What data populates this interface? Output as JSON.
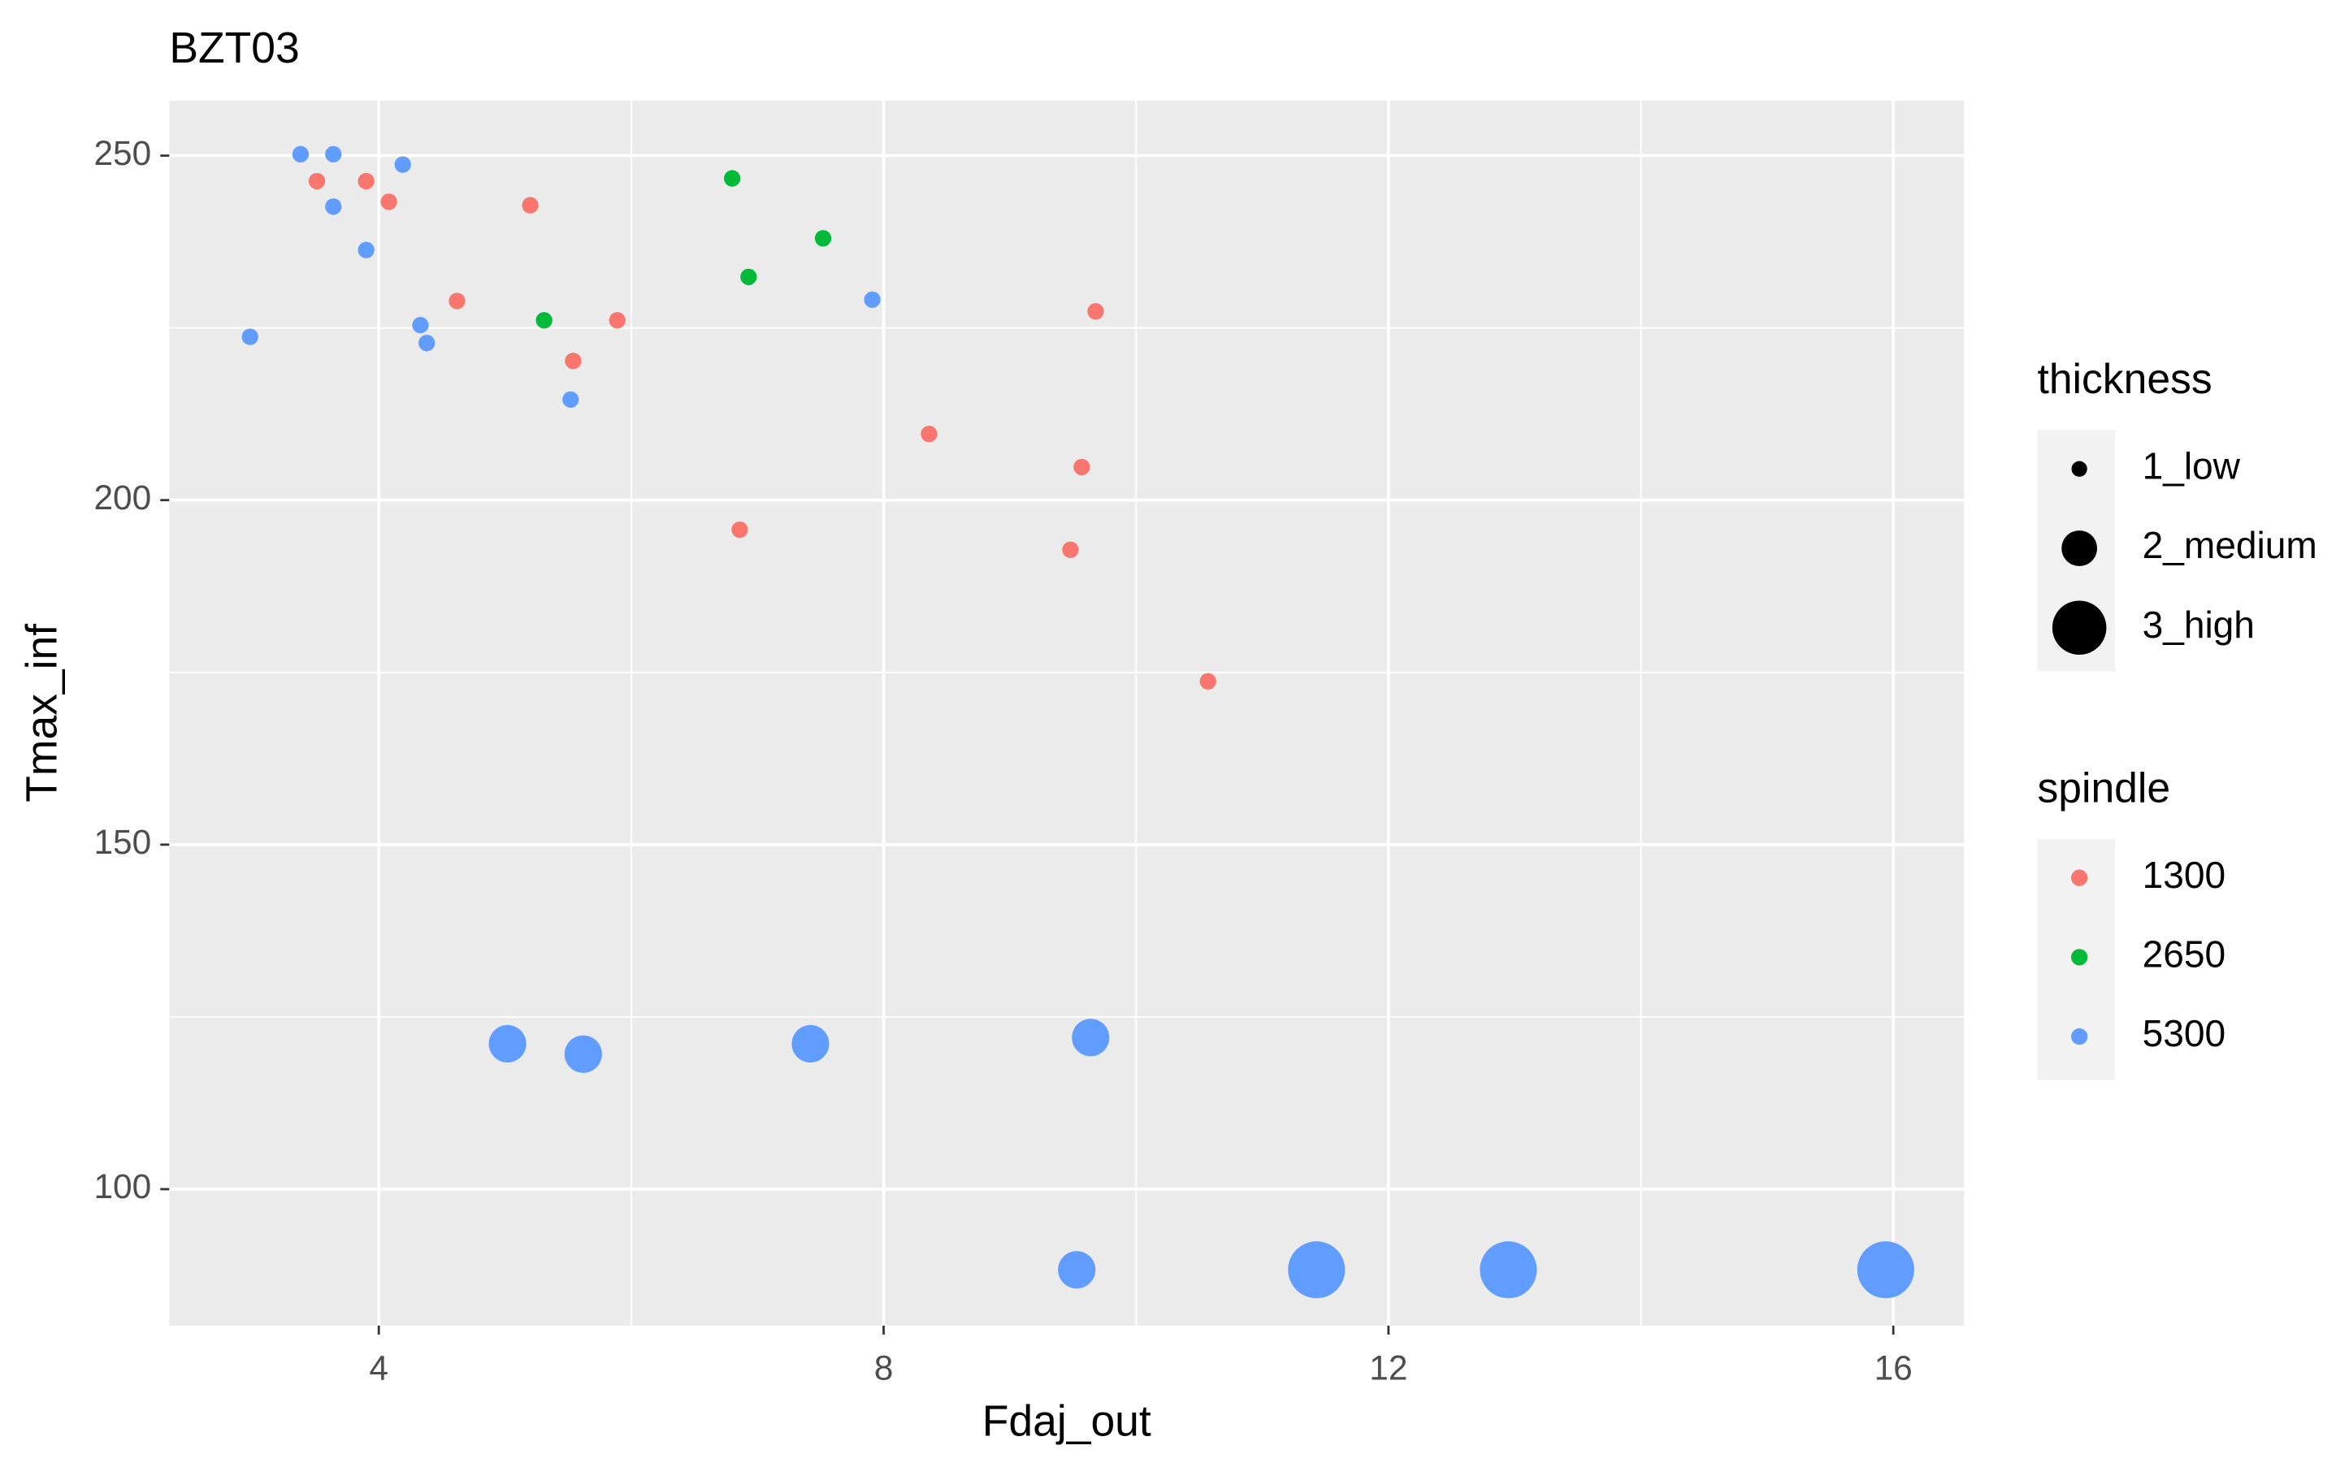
{
  "chart_data": {
    "type": "scatter",
    "title": "BZT03",
    "x_label": "Fdaj_out",
    "y_label": "Tmax_inf",
    "xlim": [
      2.34,
      16.56
    ],
    "ylim": [
      80.2,
      258.0
    ],
    "xticks": [
      4,
      8,
      12,
      16
    ],
    "yticks": [
      100,
      150,
      200,
      250
    ],
    "x_minor_ticks": [
      6,
      10,
      14
    ],
    "y_minor_ticks": [
      125,
      175,
      225
    ],
    "grid": true,
    "legend_position": "right",
    "size_legend_title": "thickness",
    "size_levels": [
      "1_low",
      "2_medium",
      "3_high"
    ],
    "color_legend_title": "spindle",
    "series": [
      {
        "name": "1300",
        "color": "#F8766D",
        "x": [
          3.51,
          3.9,
          4.08,
          4.62,
          5.2,
          5.54,
          5.89,
          6.86,
          8.36,
          9.57,
          9.48,
          9.68,
          10.57
        ],
        "y": [
          246.3,
          246.3,
          243.3,
          228.9,
          242.8,
          220.2,
          226.1,
          195.7,
          209.6,
          204.8,
          192.8,
          227.4,
          173.7
        ],
        "thickness": [
          "1_low",
          "1_low",
          "1_low",
          "1_low",
          "1_low",
          "1_low",
          "1_low",
          "1_low",
          "1_low",
          "1_low",
          "1_low",
          "1_low",
          "1_low"
        ]
      },
      {
        "name": "2650",
        "color": "#00BA38",
        "x": [
          6.8,
          7.52,
          6.93,
          5.31
        ],
        "y": [
          246.7,
          238.0,
          232.4,
          226.1
        ],
        "thickness": [
          "1_low",
          "1_low",
          "1_low",
          "1_low"
        ]
      },
      {
        "name": "5300",
        "color": "#619CFF",
        "x": [
          3.38,
          3.64,
          4.19,
          3.64,
          3.9,
          2.98,
          4.33,
          4.38,
          5.52,
          7.91,
          5.02,
          5.62,
          7.42,
          9.64,
          9.53,
          11.43,
          12.95,
          15.94
        ],
        "y": [
          250.2,
          250.2,
          248.7,
          242.6,
          236.3,
          223.7,
          225.4,
          222.8,
          214.6,
          229.1,
          121.1,
          119.6,
          121.1,
          122.0,
          88.3,
          88.3,
          88.3,
          88.3
        ],
        "thickness": [
          "1_low",
          "1_low",
          "1_low",
          "1_low",
          "1_low",
          "1_low",
          "1_low",
          "1_low",
          "1_low",
          "1_low",
          "2_medium",
          "2_medium",
          "2_medium",
          "2_medium",
          "2_medium",
          "3_high",
          "3_high",
          "3_high"
        ]
      }
    ]
  }
}
